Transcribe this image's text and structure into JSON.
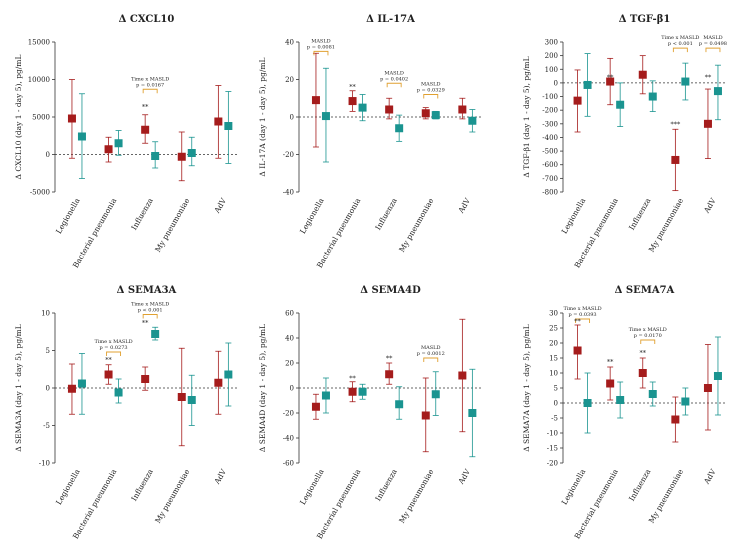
{
  "colors": {
    "group_a": "#a51c1c",
    "group_b": "#1a9490",
    "bracket": "#e0a030"
  },
  "categories": [
    "Legionella",
    "Bacterial pneumonia",
    "Influenza",
    "My pneumoniae",
    "AdV"
  ],
  "chart_data": [
    {
      "type": "scatter",
      "title": "Δ CXCL10",
      "ylabel": "Δ CXCL10 (day 1 - day 5), pg/mL",
      "ylim": [
        -5000,
        15000
      ],
      "yticks": [
        -5000,
        0,
        5000,
        10000,
        15000
      ],
      "series": [
        {
          "mean": [
            4800,
            700,
            3300,
            -300,
            4400
          ],
          "lo": [
            -500,
            -1000,
            1500,
            -3500,
            -500
          ],
          "hi": [
            10000,
            2300,
            5300,
            3000,
            9200
          ]
        },
        {
          "mean": [
            2400,
            1500,
            -200,
            200,
            3800
          ],
          "lo": [
            -3200,
            -100,
            -1800,
            -1500,
            -1200
          ],
          "hi": [
            8100,
            3200,
            1700,
            2300,
            8400
          ]
        }
      ],
      "brackets": [
        {
          "cat": 2,
          "top": 8700,
          "lines": [
            "Time x MASLD",
            "p = 0.0167"
          ]
        }
      ],
      "stars": [
        {
          "cat": 2,
          "y": 6100,
          "text": "**"
        }
      ]
    },
    {
      "type": "scatter",
      "title": "Δ IL-17A",
      "ylabel": "Δ IL-17A (day 1 - day 5), pg/mL",
      "ylim": [
        -40,
        40
      ],
      "yticks": [
        -40,
        -20,
        0,
        20,
        40
      ],
      "series": [
        {
          "mean": [
            9,
            8.5,
            4,
            2,
            4
          ],
          "lo": [
            -16,
            3,
            -1,
            -1,
            -1
          ],
          "hi": [
            34,
            14,
            10,
            5,
            10
          ]
        },
        {
          "mean": [
            0.5,
            5,
            -6,
            1,
            -2
          ],
          "lo": [
            -24,
            -2,
            -13,
            -1,
            -8
          ],
          "hi": [
            26,
            12,
            1,
            3,
            4
          ]
        }
      ],
      "brackets": [
        {
          "cat": 0,
          "top": 35,
          "lines": [
            "MASLD",
            "p = 0.0081"
          ]
        },
        {
          "cat": 2,
          "top": 18,
          "lines": [
            "MASLD",
            "p = 0.0402"
          ]
        },
        {
          "cat": 3,
          "top": 12,
          "lines": [
            "MASLD",
            "p = 0.0329"
          ]
        }
      ],
      "stars": [
        {
          "cat": 1,
          "y": 15,
          "text": "**"
        }
      ]
    },
    {
      "type": "scatter",
      "title": "Δ TGF-β1",
      "ylabel": "Δ TGF-β1 (day 1 - day 5), pg/mL",
      "ylim": [
        -800,
        300
      ],
      "yticks": [
        -800,
        -700,
        -600,
        -500,
        -400,
        -300,
        -200,
        -100,
        0,
        100,
        200,
        300
      ],
      "series": [
        {
          "mean": [
            -130,
            10,
            60,
            -565,
            -300
          ],
          "lo": [
            -360,
            -160,
            -80,
            -790,
            -555
          ],
          "hi": [
            95,
            180,
            200,
            -340,
            -45
          ]
        },
        {
          "mean": [
            -15,
            -160,
            -100,
            10,
            -60
          ],
          "lo": [
            -245,
            -320,
            -210,
            -125,
            -270
          ],
          "hi": [
            215,
            0,
            15,
            145,
            130
          ]
        }
      ],
      "brackets": [
        {
          "cat": 3,
          "top": 255,
          "lines": [
            "Time x MASLD",
            "p < 0.001"
          ]
        },
        {
          "cat": 4,
          "top": 255,
          "lines": [
            "MASLD",
            "p = 0.0498"
          ]
        }
      ],
      "stars": [
        {
          "cat": 1,
          "y": 25,
          "text": "**"
        },
        {
          "cat": 3,
          "y": -320,
          "text": "***"
        },
        {
          "cat": 4,
          "y": 25,
          "text": "**"
        }
      ]
    },
    {
      "type": "scatter",
      "title": "Δ SEMA3A",
      "ylabel": "Δ SEMA3A (day 1 - day 5), pg/mL",
      "ylim": [
        -10,
        10
      ],
      "yticks": [
        -10,
        -5,
        0,
        5,
        10
      ],
      "series": [
        {
          "mean": [
            -0.1,
            1.8,
            1.2,
            -1.2,
            0.7
          ],
          "lo": [
            -3.5,
            0.5,
            -0.3,
            -7.7,
            -3.5
          ],
          "hi": [
            3.2,
            3.1,
            2.8,
            5.3,
            4.9
          ]
        },
        {
          "mean": [
            0.6,
            -0.6,
            7.2,
            -1.6,
            1.8
          ],
          "lo": [
            -3.5,
            -2,
            6.4,
            -5,
            -2.4
          ],
          "hi": [
            4.6,
            1.2,
            8.1,
            1.7,
            6
          ]
        }
      ],
      "brackets": [
        {
          "cat": 1,
          "top": 4.8,
          "lines": [
            "Time x MASLD",
            "p = 0.0273"
          ]
        },
        {
          "cat": 2,
          "top": 9.8,
          "lines": [
            "Time x MASLD",
            "p < 0.001"
          ]
        }
      ],
      "stars": [
        {
          "cat": 1,
          "y": 3.5,
          "text": "**"
        },
        {
          "cat": 2,
          "y": 8.4,
          "text": "**"
        }
      ]
    },
    {
      "type": "scatter",
      "title": "Δ SEMA4D",
      "ylabel": "Δ SEMA4D (day 1 - day 5), pg/mL",
      "ylim": [
        -60,
        60
      ],
      "yticks": [
        -60,
        -40,
        -20,
        0,
        20,
        40,
        60
      ],
      "series": [
        {
          "mean": [
            -15,
            -3,
            11,
            -22,
            10
          ],
          "lo": [
            -25,
            -11,
            3,
            -51,
            -35
          ],
          "hi": [
            -5,
            5,
            20,
            8,
            55
          ]
        },
        {
          "mean": [
            -6,
            -3,
            -13,
            -5,
            -20
          ],
          "lo": [
            -20,
            -9,
            -25,
            -22,
            -55
          ],
          "hi": [
            8,
            3,
            1,
            13,
            15
          ]
        }
      ],
      "brackets": [
        {
          "cat": 3,
          "top": 24,
          "lines": [
            "MASLD",
            "p = 0.0012"
          ]
        }
      ],
      "stars": [
        {
          "cat": 1,
          "y": 6,
          "text": "**"
        },
        {
          "cat": 2,
          "y": 22,
          "text": "**"
        }
      ]
    },
    {
      "type": "scatter",
      "title": "Δ SEMA7A",
      "ylabel": "Δ SEMA7A (day 1 - day 5), pg/mL",
      "ylim": [
        -20,
        30
      ],
      "yticks": [
        -20,
        -15,
        -10,
        -5,
        0,
        5,
        10,
        15,
        20,
        25,
        30
      ],
      "series": [
        {
          "mean": [
            17.5,
            6.5,
            10,
            -5.5,
            5
          ],
          "lo": [
            8,
            1,
            5,
            -13,
            -9
          ],
          "hi": [
            26,
            12,
            15,
            2,
            19.5
          ]
        },
        {
          "mean": [
            0,
            1,
            3,
            0.5,
            9
          ],
          "lo": [
            -10,
            -5,
            -1,
            -4,
            -4
          ],
          "hi": [
            10,
            7,
            7,
            5,
            22
          ]
        }
      ],
      "brackets": [
        {
          "cat": 0,
          "top": 28,
          "lines": [
            "Time x MASLD",
            "p = 0.0393"
          ]
        },
        {
          "cat": 2,
          "top": 21,
          "lines": [
            "Time x MASLD",
            "p = 0.0170"
          ]
        }
      ],
      "stars": [
        {
          "cat": 0,
          "y": 26.5,
          "text": "**"
        },
        {
          "cat": 1,
          "y": 13,
          "text": "**"
        },
        {
          "cat": 2,
          "y": 16,
          "text": "**"
        }
      ]
    }
  ]
}
